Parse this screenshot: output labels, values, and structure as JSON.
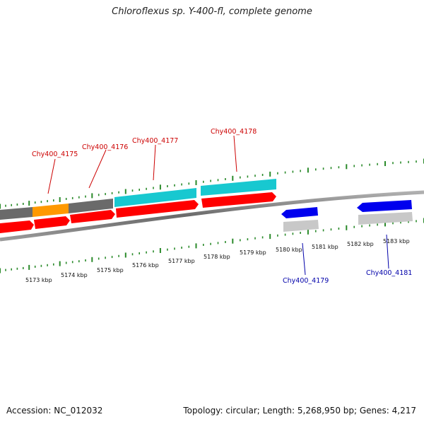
{
  "title": "Chloroflexus sp. Y-400-fl, complete genome",
  "footer": {
    "accession": "Accession: NC_012032",
    "stats": "Topology: circular; Length: 5,268,950 bp; Genes: 4,217"
  },
  "colors": {
    "forward_cds": "#ff0000",
    "reverse_cds": "#0000ee",
    "gene_grey": "#6a6a6a",
    "gene_orange": "#ff9900",
    "gene_cyan": "#18c8d0",
    "light_grey": "#c8c8c8",
    "tick_green": "#2a8a2a",
    "backbone": "#888888"
  },
  "scale_labels": [
    "5173 kbp",
    "5174 kbp",
    "5175 kbp",
    "5176 kbp",
    "5177 kbp",
    "5178 kbp",
    "5179 kbp",
    "5180 kbp",
    "5181 kbp",
    "5182 kbp",
    "5183 kbp"
  ],
  "gene_labels": [
    {
      "text": "Chy400_4175",
      "strand": "forward"
    },
    {
      "text": "Chy400_4176",
      "strand": "forward"
    },
    {
      "text": "Chy400_4177",
      "strand": "forward"
    },
    {
      "text": "Chy400_4178",
      "strand": "forward"
    },
    {
      "text": "Chy400_4179",
      "strand": "reverse"
    },
    {
      "text": "Chy400_4181",
      "strand": "reverse"
    }
  ]
}
